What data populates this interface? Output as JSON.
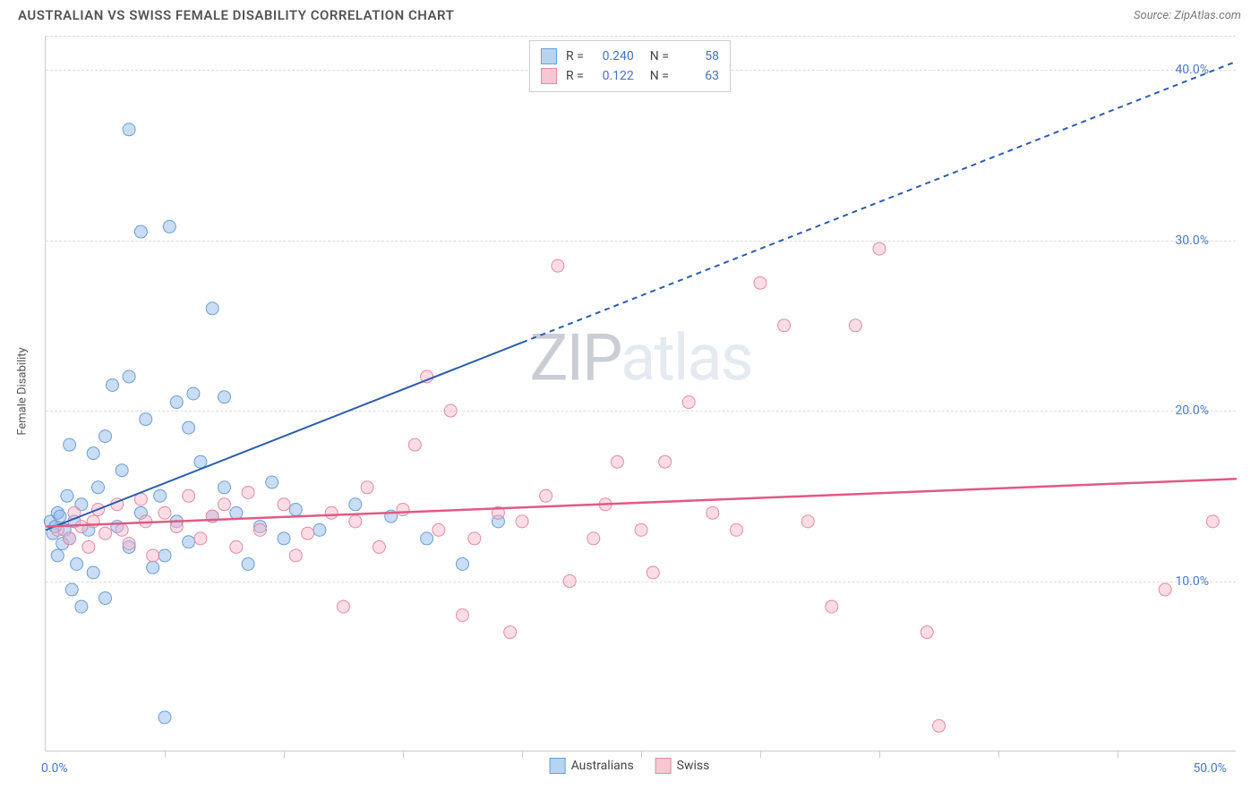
{
  "header": {
    "title": "AUSTRALIAN VS SWISS FEMALE DISABILITY CORRELATION CHART",
    "source": "Source: ZipAtlas.com"
  },
  "watermark": {
    "part1": "ZIP",
    "part2": "atlas"
  },
  "chart": {
    "type": "scatter",
    "y_axis_label": "Female Disability",
    "xlim": [
      0,
      50
    ],
    "ylim": [
      0,
      42
    ],
    "x_ticks_major": [
      0,
      50
    ],
    "x_tick_labels": [
      "0.0%",
      "50.0%"
    ],
    "x_ticks_minor": [
      5,
      10,
      15,
      20,
      25,
      30,
      35,
      40,
      45
    ],
    "y_grid": [
      10,
      20,
      30,
      40
    ],
    "y_tick_labels": [
      "10.0%",
      "20.0%",
      "30.0%",
      "40.0%"
    ],
    "background_color": "#ffffff",
    "grid_color": "#dddddd",
    "axis_color": "#cccccc",
    "series": [
      {
        "name": "Australians",
        "color_fill": "rgba(135,180,235,0.45)",
        "color_stroke": "#6a9fd4",
        "marker_radius": 7,
        "trend": {
          "x1": 0,
          "y1": 13,
          "x2": 20,
          "y2": 24,
          "x3": 50,
          "y3": 40.5,
          "solid_to_x": 20,
          "color": "#2a5db0",
          "width": 2
        },
        "stats": {
          "R": "0.240",
          "N": "58"
        },
        "points": [
          [
            0.2,
            13.5
          ],
          [
            0.3,
            12.8
          ],
          [
            0.4,
            13.2
          ],
          [
            0.5,
            14.0
          ],
          [
            0.5,
            11.5
          ],
          [
            0.6,
            13.8
          ],
          [
            0.7,
            12.2
          ],
          [
            0.8,
            13.0
          ],
          [
            0.9,
            15.0
          ],
          [
            1.0,
            12.5
          ],
          [
            1.0,
            18.0
          ],
          [
            1.1,
            9.5
          ],
          [
            1.2,
            13.5
          ],
          [
            1.3,
            11.0
          ],
          [
            1.5,
            8.5
          ],
          [
            1.5,
            14.5
          ],
          [
            1.8,
            13.0
          ],
          [
            2.0,
            17.5
          ],
          [
            2.0,
            10.5
          ],
          [
            2.2,
            15.5
          ],
          [
            2.5,
            18.5
          ],
          [
            2.5,
            9.0
          ],
          [
            2.8,
            21.5
          ],
          [
            3.0,
            13.2
          ],
          [
            3.2,
            16.5
          ],
          [
            3.5,
            12.0
          ],
          [
            3.5,
            22.0
          ],
          [
            3.5,
            36.5
          ],
          [
            4.0,
            14.0
          ],
          [
            4.0,
            30.5
          ],
          [
            4.2,
            19.5
          ],
          [
            4.5,
            10.8
          ],
          [
            4.8,
            15.0
          ],
          [
            5.0,
            11.5
          ],
          [
            5.0,
            2.0
          ],
          [
            5.2,
            30.8
          ],
          [
            5.5,
            13.5
          ],
          [
            5.5,
            20.5
          ],
          [
            6.0,
            12.3
          ],
          [
            6.0,
            19.0
          ],
          [
            6.2,
            21.0
          ],
          [
            6.5,
            17.0
          ],
          [
            7.0,
            26.0
          ],
          [
            7.0,
            13.8
          ],
          [
            7.5,
            15.5
          ],
          [
            7.5,
            20.8
          ],
          [
            8.0,
            14.0
          ],
          [
            8.5,
            11.0
          ],
          [
            9.0,
            13.2
          ],
          [
            9.5,
            15.8
          ],
          [
            10.0,
            12.5
          ],
          [
            10.5,
            14.2
          ],
          [
            11.5,
            13.0
          ],
          [
            13.0,
            14.5
          ],
          [
            14.5,
            13.8
          ],
          [
            16.0,
            12.5
          ],
          [
            17.5,
            11.0
          ],
          [
            19.0,
            13.5
          ]
        ]
      },
      {
        "name": "Swiss",
        "color_fill": "rgba(248,180,200,0.45)",
        "color_stroke": "#e28ba5",
        "marker_radius": 7,
        "trend": {
          "x1": 0,
          "y1": 13.2,
          "x2": 50,
          "y2": 16.0,
          "color": "#e05a84",
          "width": 2.5
        },
        "stats": {
          "R": "0.122",
          "N": "63"
        },
        "points": [
          [
            0.5,
            13.0
          ],
          [
            1.0,
            12.5
          ],
          [
            1.2,
            14.0
          ],
          [
            1.5,
            13.2
          ],
          [
            1.8,
            12.0
          ],
          [
            2.0,
            13.5
          ],
          [
            2.2,
            14.2
          ],
          [
            2.5,
            12.8
          ],
          [
            3.0,
            14.5
          ],
          [
            3.2,
            13.0
          ],
          [
            3.5,
            12.2
          ],
          [
            4.0,
            14.8
          ],
          [
            4.2,
            13.5
          ],
          [
            4.5,
            11.5
          ],
          [
            5.0,
            14.0
          ],
          [
            5.5,
            13.2
          ],
          [
            6.0,
            15.0
          ],
          [
            6.5,
            12.5
          ],
          [
            7.0,
            13.8
          ],
          [
            7.5,
            14.5
          ],
          [
            8.0,
            12.0
          ],
          [
            8.5,
            15.2
          ],
          [
            9.0,
            13.0
          ],
          [
            10.0,
            14.5
          ],
          [
            10.5,
            11.5
          ],
          [
            11.0,
            12.8
          ],
          [
            12.0,
            14.0
          ],
          [
            12.5,
            8.5
          ],
          [
            13.0,
            13.5
          ],
          [
            13.5,
            15.5
          ],
          [
            14.0,
            12.0
          ],
          [
            15.0,
            14.2
          ],
          [
            15.5,
            18.0
          ],
          [
            16.0,
            22.0
          ],
          [
            16.5,
            13.0
          ],
          [
            17.0,
            20.0
          ],
          [
            17.5,
            8.0
          ],
          [
            18.0,
            12.5
          ],
          [
            19.0,
            14.0
          ],
          [
            19.5,
            7.0
          ],
          [
            20.0,
            13.5
          ],
          [
            21.0,
            15.0
          ],
          [
            21.5,
            28.5
          ],
          [
            22.0,
            10.0
          ],
          [
            23.0,
            12.5
          ],
          [
            23.5,
            14.5
          ],
          [
            24.0,
            17.0
          ],
          [
            25.0,
            13.0
          ],
          [
            25.5,
            10.5
          ],
          [
            26.0,
            17.0
          ],
          [
            27.0,
            20.5
          ],
          [
            28.0,
            14.0
          ],
          [
            29.0,
            13.0
          ],
          [
            30.0,
            27.5
          ],
          [
            31.0,
            25.0
          ],
          [
            32.0,
            13.5
          ],
          [
            33.0,
            8.5
          ],
          [
            34.0,
            25.0
          ],
          [
            35.0,
            29.5
          ],
          [
            37.0,
            7.0
          ],
          [
            37.5,
            1.5
          ],
          [
            47.0,
            9.5
          ],
          [
            49.0,
            13.5
          ]
        ]
      }
    ],
    "legend_bottom": [
      {
        "label": "Australians",
        "fill": "#b6d4f0",
        "stroke": "#6a9fd4"
      },
      {
        "label": "Swiss",
        "fill": "#f7c7d4",
        "stroke": "#e28ba5"
      }
    ]
  }
}
